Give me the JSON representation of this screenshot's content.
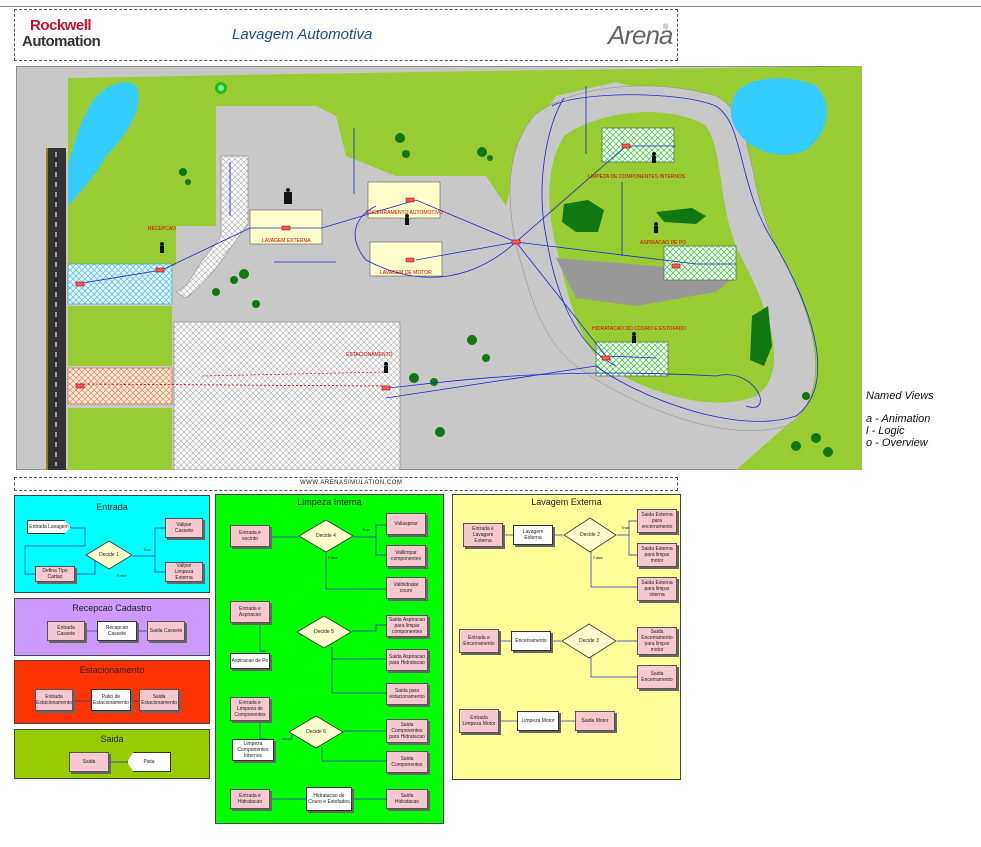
{
  "header": {
    "logo_line1": "Rockwell",
    "logo_line2": "Automation",
    "title": "Lavagem Automotiva",
    "arena_logo": "Arena",
    "arena_mark": "®"
  },
  "map_labels": {
    "recepcao": "RECEPCAO",
    "lavagem_externa": "LAVAGEM EXTERNA",
    "encerramento": "ENCERRAMENTO AUTOMOTIVO",
    "lavagem_motor": "LAVAGEM DE MOTOR",
    "limpeza_componentes": "LIMPEZA DE COMPONENTES INTERNOS",
    "aspiracao": "ASPIRACAO DE PO",
    "hidratacao": "HIDRATACAO DO COURO E ESTOFADO",
    "estacionamento": "ESTACIONAMENTO"
  },
  "url": "WWW.ARENASIMULATION.COM",
  "named_views": {
    "title": "Named Views",
    "items": [
      "a - Animation",
      "l - Logic",
      "o - Overview"
    ]
  },
  "panels": {
    "entrada": {
      "title": "Entrada",
      "create": "Entrada Lavagem",
      "decide": "Decide 1",
      "check": "Defina Tipo Cartao",
      "assign1": "Valipar Cassete",
      "assign2": "Valipar Limpeza Esterna",
      "true": "True",
      "false": "False"
    },
    "recepcao": {
      "title": "Recepcao Cadastro",
      "m1": "Entrada Cassete",
      "m2": "Recepcao Cassete",
      "m3": "Saida Cassete"
    },
    "estacionamento": {
      "title": "Estacionamento",
      "m1": "Entrada Estacionamento",
      "m2": "Patio de Estacionamento",
      "m3": "Saida Estacionamento"
    },
    "saida": {
      "title": "Saida",
      "m1": "Saida",
      "m2": "Pista"
    },
    "limpeza": {
      "title": "Limpeza Interna",
      "m_entry": "Entrada e escinto",
      "decide4": "Decide 4",
      "a1": "Valiaspirar",
      "a2": "Valilimpar componentes",
      "a3": "Valihidratar couro",
      "m_asp": "Entrada e Aspiracao",
      "m_asp2": "Aspiracao de Po",
      "decide5": "Decide 5",
      "b1": "Saida Aspiracao para limpar componentes",
      "b2": "Saida Aspiracao para Hidratacao",
      "b3": "Saida para estacionamento",
      "m_comp": "Entrada e Limpeza de Componentes",
      "m_comp2": "Limpeza Componentes Internos",
      "decide6": "Decide 6",
      "c1": "Saida Componentes para Hidratacao",
      "c2": "Saida Componentes",
      "m_hid": "Entrada e Hidratacao",
      "m_hid2": "Hidratacao de Couro e Estofados",
      "m_hid3": "Saida Hidratacao",
      "true": "True",
      "false": "False"
    },
    "lavagem": {
      "title": "Lavagem Externa",
      "m1": "Entrada e Lavagem Externa",
      "m2": "Lavagem Externa",
      "decide2": "Decide 2",
      "a1": "Saida Externa para encerramento",
      "a2": "Saida Externa para limpar motor",
      "a3": "Saida Externa para limpar interna",
      "m3": "Entrada e Encerramento",
      "m4": "Encerramento",
      "decide3": "Decide 3",
      "b1": "Saida Encerramento para limpar motor",
      "b2": "Saida Encerramento",
      "m5": "Entrada Limpeza Motor",
      "m6": "Limpeza Motor",
      "m7": "Saida Motor",
      "true": "True",
      "false": "False"
    }
  },
  "colors": {
    "grass": "#99cc33",
    "road": "#c8c8c8",
    "water": "#33ccff",
    "entrada_bg": "#00ffff",
    "recepcao_bg": "#cc99ff",
    "estacionamento_bg": "#ff3300",
    "saida_bg": "#99cc00",
    "limpeza_bg": "#00ff00",
    "lavagem_bg": "#ffff99",
    "module_pink": "#f8c8d0"
  }
}
